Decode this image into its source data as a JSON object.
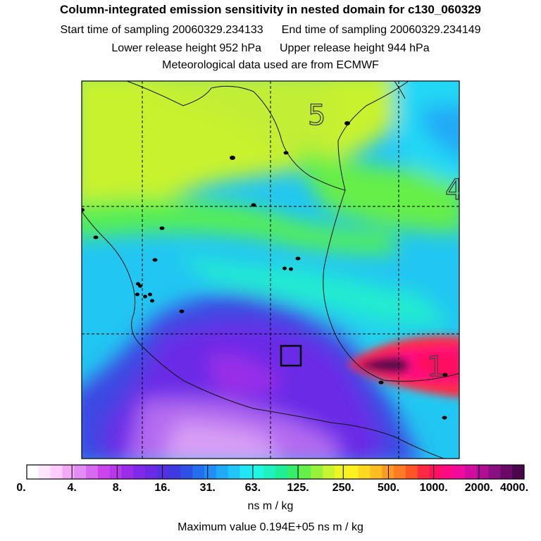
{
  "header": {
    "title": "Column-integrated emission sensitivity in nested domain for c130_060329",
    "start_time": "Start time of sampling 20060329.234133",
    "end_time": "End time of sampling 20060329.234149",
    "lower_release": "Lower release height  952 hPa",
    "upper_release": "Upper release height  944 hPa",
    "met_data": "Meteorological data used are from ECMWF"
  },
  "map": {
    "region_labels": [
      "5",
      "4",
      "1"
    ]
  },
  "colorbar": {
    "tick_labels": [
      "0.",
      "4.",
      "8.",
      "16.",
      "31.",
      "63.",
      "125.",
      "250.",
      "500.",
      "1000.",
      "2000.",
      "4000."
    ],
    "colors": [
      "#ffffff",
      "#ffe6ff",
      "#ffccff",
      "#f2aaf7",
      "#e38cf5",
      "#d86af2",
      "#cc44ee",
      "#b936ea",
      "#9a2ee8",
      "#7f2ae8",
      "#6a2ae6",
      "#5530e3",
      "#3f3ae0",
      "#2f50e6",
      "#236ff0",
      "#208ef6",
      "#20aaf8",
      "#20c6f8",
      "#20e6f5",
      "#20f6e0",
      "#20f2bf",
      "#20ee96",
      "#36ee6a",
      "#66f04a",
      "#96f23a",
      "#c8f530",
      "#eef520",
      "#fff020",
      "#ffd820",
      "#ffbd20",
      "#ff9a20",
      "#ff7a22",
      "#ff5526",
      "#ff2a40",
      "#ff1060",
      "#ff0a85",
      "#f00a9e",
      "#d20c9e",
      "#b00e94",
      "#8a0f80",
      "#6a0a66",
      "#4a084a"
    ],
    "units": "ns m / kg"
  },
  "footer": {
    "max_value": "Maximum value  0.194E+05 ns m / kg"
  }
}
